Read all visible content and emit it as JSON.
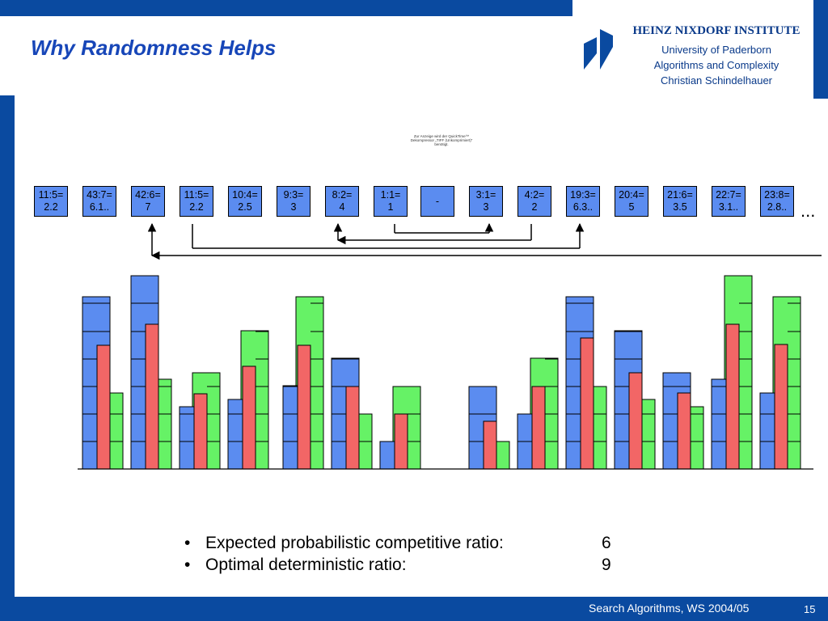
{
  "title": "Why Randomness Helps",
  "institute": {
    "name": "HEINZ NIXDORF INSTITUTE",
    "lines": [
      "University of Paderborn",
      "Algorithms and Complexity",
      "Christian Schindelhauer"
    ]
  },
  "quicktime_note": [
    "Zur Anzeige wird der QuickTime™",
    "Dekompressor „TIFF (Unkomprimiert)“",
    "benötigt."
  ],
  "ratio_boxes": [
    {
      "line1": "11:5=",
      "line2": "2.2"
    },
    {
      "line1": "43:7=",
      "line2": "6.1.."
    },
    {
      "line1": "42:6=",
      "line2": "7"
    },
    {
      "line1": "11:5=",
      "line2": "2.2"
    },
    {
      "line1": "10:4=",
      "line2": "2.5"
    },
    {
      "line1": "9:3=",
      "line2": "3"
    },
    {
      "line1": "8:2=",
      "line2": "4"
    },
    {
      "line1": "1:1=",
      "line2": "1"
    },
    {
      "line1": "-",
      "line2": ""
    },
    {
      "line1": "3:1=",
      "line2": "3"
    },
    {
      "line1": "4:2=",
      "line2": "2"
    },
    {
      "line1": "19:3=",
      "line2": "6.3.."
    },
    {
      "line1": "20:4=",
      "line2": "5"
    },
    {
      "line1": "21:6=",
      "line2": "3.5"
    },
    {
      "line1": "22:7=",
      "line2": "3.1.."
    },
    {
      "line1": "23:8=",
      "line2": "2.8.."
    }
  ],
  "ellipsis": "...",
  "bullets": [
    {
      "text": "Expected probabilistic competitive ratio:",
      "value": "6"
    },
    {
      "text": "Optimal deterministic ratio:",
      "value": "9"
    }
  ],
  "bullet_char": "•",
  "footer": "Search Algorithms, WS 2004/05",
  "page_number": "15",
  "colors": {
    "frame": "#0a4aa0",
    "title": "#1746b8",
    "blue_bar": "#5b8cf0",
    "green_bar": "#66f266",
    "red_bar": "#f26666"
  }
}
